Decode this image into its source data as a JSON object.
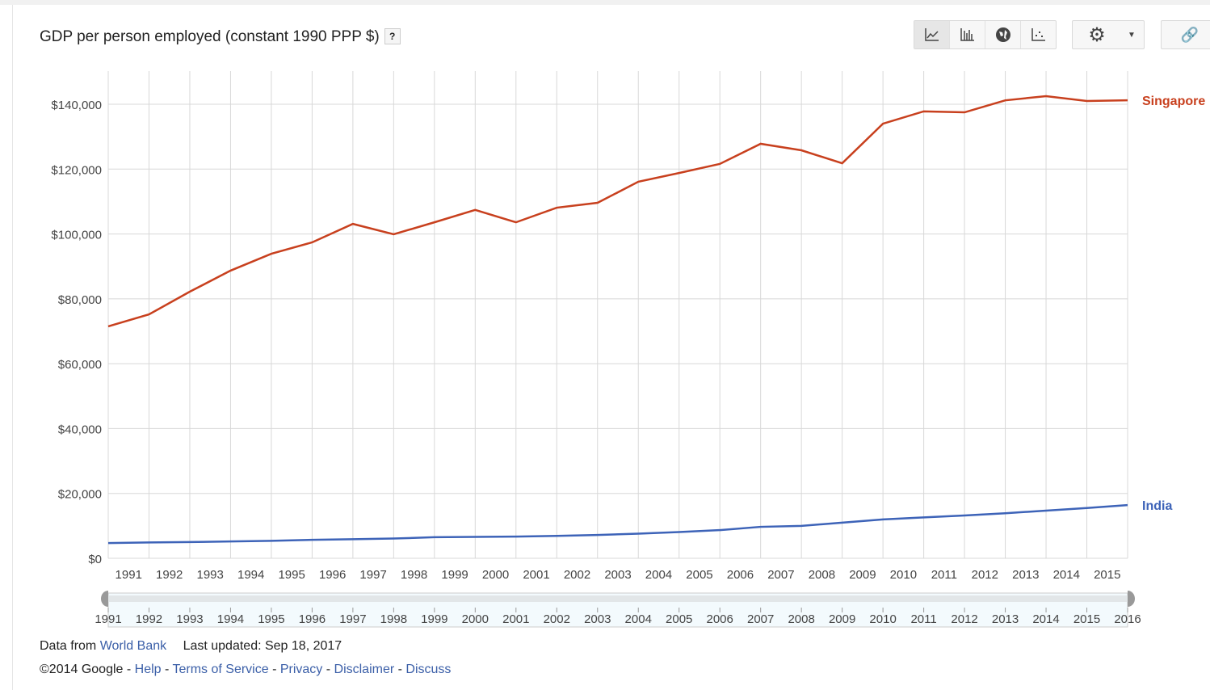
{
  "title": "GDP per person employed (constant 1990 PPP $)",
  "help_label": "?",
  "toolbar": {
    "icons": [
      "line-chart-icon",
      "bar-chart-icon",
      "map-icon",
      "bubble-chart-icon",
      "gear-icon",
      "link-icon"
    ],
    "selected": "line-chart-icon"
  },
  "chart_data": {
    "type": "line",
    "title": "GDP per person employed (constant 1990 PPP $)",
    "x": [
      1991,
      1992,
      1993,
      1994,
      1995,
      1996,
      1997,
      1998,
      1999,
      2000,
      2001,
      2002,
      2003,
      2004,
      2005,
      2006,
      2007,
      2008,
      2009,
      2010,
      2011,
      2012,
      2013,
      2014,
      2015,
      2016
    ],
    "x_tick_labels": [
      "1991",
      "1992",
      "1993",
      "1994",
      "1995",
      "1996",
      "1997",
      "1998",
      "1999",
      "2000",
      "2001",
      "2002",
      "2003",
      "2004",
      "2005",
      "2006",
      "2007",
      "2008",
      "2009",
      "2010",
      "2011",
      "2012",
      "2013",
      "2014",
      "2015"
    ],
    "y_tick_labels": [
      "$0",
      "$20,000",
      "$40,000",
      "$60,000",
      "$80,000",
      "$100,000",
      "$120,000",
      "$140,000"
    ],
    "ylim": [
      0,
      150000
    ],
    "grid": true,
    "series": [
      {
        "name": "Singapore",
        "color": "#c8401e",
        "values": [
          71500,
          75200,
          82200,
          88700,
          93900,
          97400,
          103100,
          99900,
          103600,
          107400,
          103600,
          108100,
          109600,
          116100,
          118800,
          121600,
          127800,
          125800,
          121800,
          134000,
          137800,
          137500,
          141200,
          142500,
          141000,
          141200
        ]
      },
      {
        "name": "India",
        "color": "#3d63b8",
        "values": [
          4700,
          4900,
          5000,
          5200,
          5400,
          5700,
          5900,
          6100,
          6500,
          6600,
          6700,
          6900,
          7200,
          7600,
          8100,
          8700,
          9700,
          10000,
          11000,
          12000,
          12600,
          13200,
          13900,
          14700,
          15500,
          16400
        ]
      }
    ],
    "timeline_labels": [
      "1991",
      "1992",
      "1993",
      "1994",
      "1995",
      "1996",
      "1997",
      "1998",
      "1999",
      "2000",
      "2001",
      "2002",
      "2003",
      "2004",
      "2005",
      "2006",
      "2007",
      "2008",
      "2009",
      "2010",
      "2011",
      "2012",
      "2013",
      "2014",
      "2015",
      "2016"
    ]
  },
  "footer": {
    "data_from": "Data from",
    "source": "World Bank",
    "updated": "Last updated: Sep 18, 2017",
    "copyright": "©2014 Google",
    "sep": " - ",
    "links": [
      "Help",
      "Terms of Service",
      "Privacy",
      "Disclaimer",
      "Discuss"
    ]
  }
}
